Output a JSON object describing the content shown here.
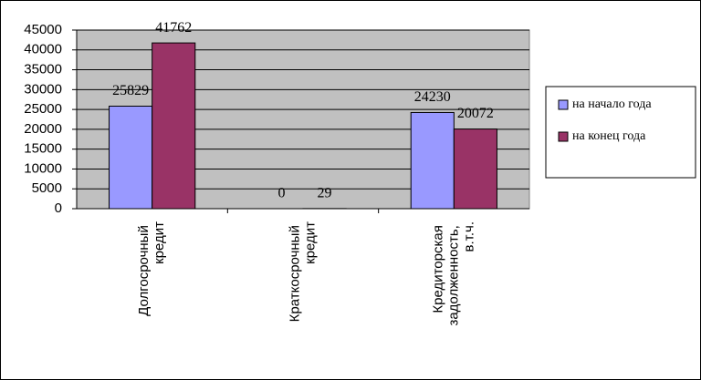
{
  "chart_data": {
    "type": "bar",
    "categories": [
      "Долгосрочный кредит",
      "Краткосрочный кредит",
      "Кредиторская задолженность, в.т.ч."
    ],
    "series": [
      {
        "name": "на начало года",
        "color": "#9999ff",
        "values": [
          25829,
          0,
          24230
        ]
      },
      {
        "name": "на конец года",
        "color": "#993366",
        "values": [
          41762,
          29,
          20072
        ]
      }
    ],
    "ylim": [
      0,
      45000
    ],
    "yticks": [
      0,
      5000,
      10000,
      15000,
      20000,
      25000,
      30000,
      35000,
      40000,
      45000
    ],
    "grid": true,
    "legend": "right",
    "plot_background": "#c0c0c0"
  }
}
